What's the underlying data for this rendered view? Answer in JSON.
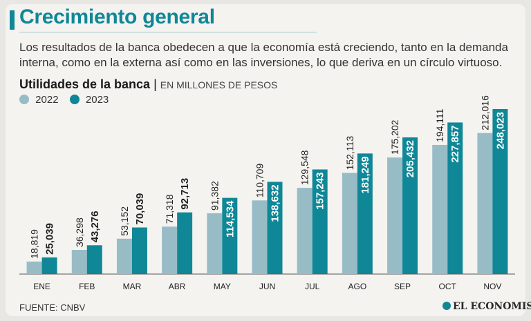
{
  "title": "Crecimiento general",
  "description": "Los resultados de la banca obedecen a que la economía está creciendo, tanto en la demanda interna, como en la externa así como en las inversiones, lo que deriva en un círculo virtuoso.",
  "colors": {
    "accent": "#0f8797",
    "series_2022": "#97bcc6",
    "series_2023": "#0f8797"
  },
  "chart_data": {
    "type": "bar",
    "title": "Utilidades de la banca",
    "ylabel": "EN MILLONES DE PESOS",
    "categories": [
      "ENE",
      "FEB",
      "MAR",
      "ABR",
      "MAY",
      "JUN",
      "JUL",
      "AGO",
      "SEP",
      "OCT",
      "NOV"
    ],
    "series": [
      {
        "name": "2022",
        "values": [
          18819,
          36298,
          53152,
          71318,
          91382,
          110709,
          129548,
          152113,
          175202,
          194111,
          212016
        ],
        "labels": [
          "18,819",
          "36,298",
          "53,152",
          "71,318",
          "91,382",
          "110,709",
          "129,548",
          "152,113",
          "175,202",
          "194,111",
          "212,016"
        ]
      },
      {
        "name": "2023",
        "values": [
          25039,
          43276,
          70039,
          92713,
          114534,
          138632,
          157243,
          181249,
          205432,
          227857,
          248023
        ],
        "labels": [
          "25,039",
          "43,276",
          "70,039",
          "92,713",
          "114,534",
          "138,632",
          "157,243",
          "181,249",
          "205,432",
          "227,857",
          "248,023"
        ]
      }
    ],
    "ylim": [
      0,
      275000
    ],
    "legend": "top-left",
    "grid": false
  },
  "source": "FUENTE: CNBV",
  "brand": "EL ECONOMISTA"
}
